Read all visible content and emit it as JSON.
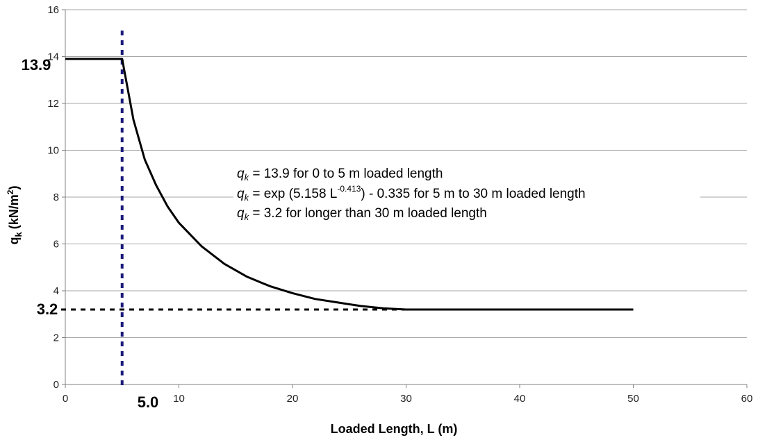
{
  "chart_data": {
    "type": "line",
    "xlabel": "Loaded Length, L (m)",
    "ylabel": "q",
    "ylabel_sub": "k",
    "ylabel_unit": "(kN/m",
    "ylabel_sup": "2",
    "ylabel_close": ")",
    "xlim": [
      0,
      60
    ],
    "ylim": [
      0,
      16
    ],
    "x_ticks": [
      "0",
      "10",
      "20",
      "30",
      "40",
      "50",
      "60"
    ],
    "y_ticks": [
      "0",
      "2",
      "4",
      "6",
      "8",
      "10",
      "12",
      "14",
      "16"
    ],
    "grid": "horizontal",
    "series": [
      {
        "color": "#000000",
        "x": [
          0,
          5,
          6,
          7,
          8,
          9,
          10,
          12,
          14,
          16,
          18,
          20,
          22,
          24,
          26,
          28,
          30,
          50
        ],
        "y": [
          13.9,
          13.9,
          11.3,
          9.6,
          8.5,
          7.6,
          6.9,
          5.9,
          5.15,
          4.6,
          4.2,
          3.9,
          3.65,
          3.5,
          3.35,
          3.25,
          3.2,
          3.2
        ]
      }
    ],
    "reference_lines": {
      "vertical_x": 5,
      "vertical_color": "#1a1a7a",
      "horizontal_y": 3.2,
      "horizontal_to_x": 30,
      "horizontal_color": "#000000"
    },
    "callouts": {
      "x_label": "5.0",
      "y_top_label": "13.9",
      "y_bottom_label": "3.2"
    },
    "annotations": [
      {
        "q": "q",
        "sub": "k",
        "pre": " = 13.9 for 0 to 5 m loaded length",
        "sup": "",
        "post": ""
      },
      {
        "q": "q",
        "sub": "k",
        "pre": " = exp (5.158 L",
        "sup": "-0.413",
        "post": ") - 0.335 for 5 m to 30 m loaded length"
      },
      {
        "q": "q",
        "sub": "k",
        "pre": " = 3.2 for longer than 30 m loaded length",
        "sup": "",
        "post": ""
      }
    ]
  }
}
